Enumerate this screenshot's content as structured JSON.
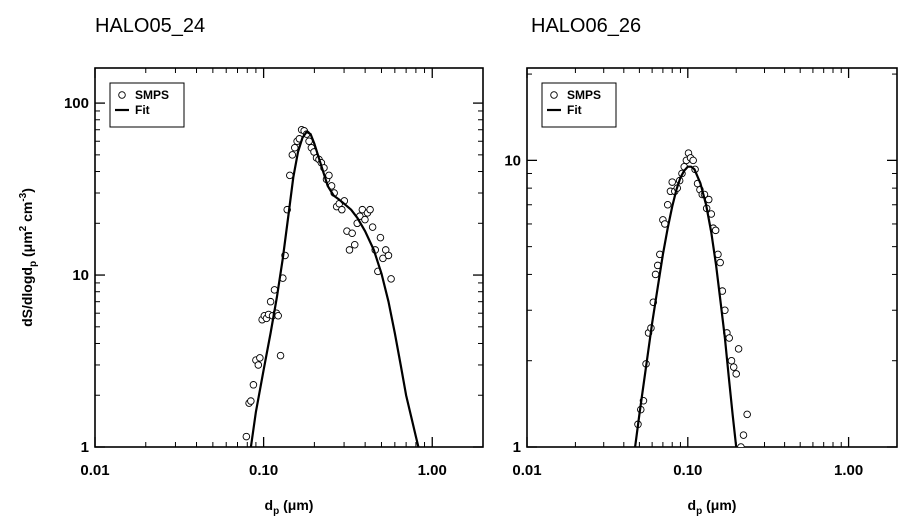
{
  "chart_data": [
    {
      "type": "scatter",
      "title": "HALO05_24",
      "xlabel": "d_p (μm)",
      "ylabel": "dS/dlogd_p (μm^2 cm^-3)",
      "xscale": "log",
      "yscale": "log",
      "xlim": [
        0.01,
        2.0
      ],
      "ylim": [
        1,
        160
      ],
      "xticks": [
        0.01,
        0.1,
        1.0
      ],
      "xtick_labels": [
        "0.01",
        "0.10",
        "1.00"
      ],
      "yticks": [
        1,
        10,
        100
      ],
      "ytick_labels": [
        "1",
        "10",
        "100"
      ],
      "legend_position": "top-left",
      "legend": [
        {
          "label": "SMPS",
          "marker": "circle"
        },
        {
          "label": "Fit",
          "marker": "line"
        }
      ],
      "series": [
        {
          "name": "SMPS",
          "kind": "markers",
          "x": [
            0.079,
            0.082,
            0.084,
            0.087,
            0.09,
            0.093,
            0.095,
            0.098,
            0.101,
            0.104,
            0.107,
            0.11,
            0.113,
            0.116,
            0.119,
            0.122,
            0.126,
            0.13,
            0.134,
            0.138,
            0.143,
            0.148,
            0.153,
            0.158,
            0.163,
            0.168,
            0.174,
            0.18,
            0.186,
            0.192,
            0.199,
            0.206,
            0.213,
            0.22,
            0.228,
            0.236,
            0.244,
            0.253,
            0.262,
            0.271,
            0.281,
            0.291,
            0.301,
            0.312,
            0.323,
            0.335,
            0.347,
            0.359,
            0.372,
            0.385,
            0.399,
            0.413,
            0.428,
            0.443,
            0.459,
            0.476,
            0.493,
            0.51,
            0.53,
            0.55,
            0.57
          ],
          "y": [
            1.15,
            1.8,
            1.85,
            2.3,
            3.2,
            3.0,
            3.3,
            5.5,
            5.8,
            5.6,
            5.9,
            7.0,
            5.8,
            8.2,
            6.0,
            5.8,
            3.4,
            9.6,
            13.0,
            24.0,
            38.0,
            50.0,
            55.0,
            60.0,
            62.0,
            70.0,
            69.0,
            66.0,
            60.0,
            55.0,
            52.0,
            48.0,
            47.0,
            45.0,
            42.0,
            36.0,
            38.0,
            33.0,
            30.0,
            25.0,
            26.0,
            24.0,
            27.0,
            18.0,
            14.0,
            17.5,
            15.0,
            20.0,
            22.0,
            24.0,
            21.0,
            23.0,
            24.0,
            19.0,
            14.0,
            10.5,
            16.5,
            12.5,
            14.0,
            13.0,
            9.5
          ]
        },
        {
          "name": "Fit",
          "kind": "line",
          "x": [
            0.084,
            0.09,
            0.1,
            0.11,
            0.12,
            0.13,
            0.14,
            0.15,
            0.16,
            0.17,
            0.18,
            0.19,
            0.2,
            0.22,
            0.24,
            0.26,
            0.28,
            0.3,
            0.33,
            0.36,
            0.4,
            0.45,
            0.5,
            0.55,
            0.6,
            0.65,
            0.7,
            0.75,
            0.8,
            0.85
          ],
          "y": [
            1.0,
            1.6,
            2.8,
            4.6,
            7.5,
            12.5,
            22.0,
            37.0,
            52.0,
            63.0,
            68.0,
            66.0,
            58.0,
            43.0,
            33.0,
            29.0,
            27.5,
            26.0,
            24.0,
            21.5,
            18.0,
            14.0,
            10.2,
            7.0,
            4.6,
            3.0,
            2.0,
            1.5,
            1.15,
            0.9
          ]
        }
      ]
    },
    {
      "type": "scatter",
      "title": "HALO06_26",
      "xlabel": "d_p (μm)",
      "ylabel": "",
      "xscale": "log",
      "yscale": "log",
      "xlim": [
        0.01,
        2.0
      ],
      "ylim": [
        1,
        21
      ],
      "xticks": [
        0.01,
        0.1,
        1.0
      ],
      "xtick_labels": [
        "0.01",
        "0.10",
        "1.00"
      ],
      "yticks": [
        1,
        10
      ],
      "ytick_labels": [
        "1",
        "10"
      ],
      "legend_position": "top-left",
      "legend": [
        {
          "label": "SMPS",
          "marker": "circle"
        },
        {
          "label": "Fit",
          "marker": "line"
        }
      ],
      "series": [
        {
          "name": "SMPS",
          "kind": "markers",
          "x": [
            0.049,
            0.051,
            0.053,
            0.055,
            0.057,
            0.059,
            0.061,
            0.063,
            0.065,
            0.067,
            0.07,
            0.072,
            0.075,
            0.078,
            0.08,
            0.083,
            0.086,
            0.089,
            0.092,
            0.095,
            0.098,
            0.101,
            0.104,
            0.108,
            0.111,
            0.115,
            0.119,
            0.123,
            0.127,
            0.131,
            0.135,
            0.14,
            0.144,
            0.149,
            0.154,
            0.159,
            0.164,
            0.17,
            0.175,
            0.181,
            0.187,
            0.193,
            0.2,
            0.207,
            0.214,
            0.222,
            0.234
          ],
          "y": [
            1.2,
            1.35,
            1.45,
            1.95,
            2.5,
            2.6,
            3.2,
            4.0,
            4.3,
            4.7,
            6.2,
            6.0,
            7.0,
            7.8,
            8.4,
            7.8,
            8.0,
            8.5,
            9.0,
            9.5,
            10.0,
            10.6,
            10.2,
            10.0,
            9.3,
            8.3,
            7.9,
            7.6,
            7.6,
            6.8,
            7.3,
            6.5,
            5.8,
            5.7,
            4.7,
            4.4,
            3.5,
            3.0,
            2.5,
            2.4,
            2.0,
            1.9,
            1.8,
            2.2,
            1.0,
            1.1,
            1.3
          ]
        },
        {
          "name": "Fit",
          "kind": "line",
          "x": [
            0.047,
            0.05,
            0.055,
            0.06,
            0.065,
            0.07,
            0.075,
            0.08,
            0.085,
            0.09,
            0.095,
            0.1,
            0.105,
            0.11,
            0.12,
            0.13,
            0.14,
            0.15,
            0.16,
            0.17,
            0.18,
            0.19,
            0.2,
            0.21
          ],
          "y": [
            1.0,
            1.3,
            1.9,
            2.7,
            3.6,
            4.7,
            5.8,
            6.9,
            7.9,
            8.7,
            9.2,
            9.5,
            9.5,
            9.3,
            8.3,
            7.0,
            5.6,
            4.3,
            3.2,
            2.4,
            1.75,
            1.3,
            1.0,
            0.8
          ]
        }
      ]
    }
  ]
}
